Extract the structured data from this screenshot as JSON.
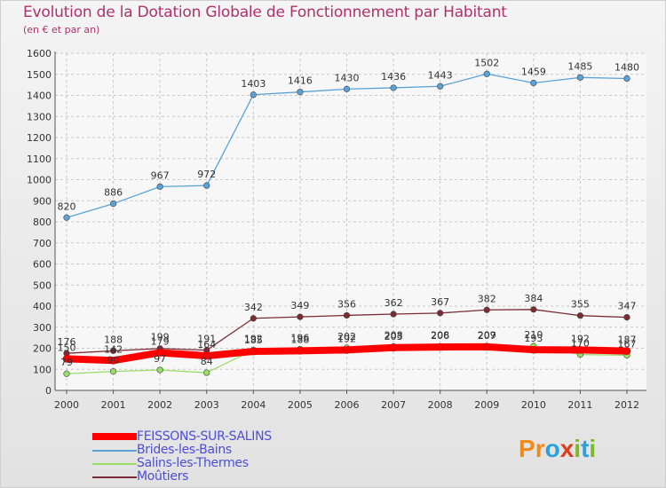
{
  "header": {
    "title": "Evolution de la Dotation Globale de Fonctionnement par Habitant",
    "subtitle": "(en € et par an)"
  },
  "logo": {
    "letters": [
      "P",
      "r",
      "o",
      "x",
      "i",
      "t",
      "i"
    ],
    "colors": [
      "#f08a1c",
      "#f08a1c",
      "#2aa1d8",
      "#e23a1c",
      "#7cb828",
      "#2aa1d8",
      "#7cb828"
    ]
  },
  "chart_data": {
    "type": "line",
    "title": "Evolution de la Dotation Globale de Fonctionnement par Habitant",
    "subtitle": "(en € et par an)",
    "xlabel": "",
    "ylabel": "",
    "ylim": [
      0,
      1600
    ],
    "ytick_step": 100,
    "yticks": [
      "0",
      "100",
      "200",
      "300",
      "400",
      "500",
      "600",
      "700",
      "800",
      "900",
      "1000",
      "1100",
      "1200",
      "1300",
      "1400",
      "1500",
      "1600"
    ],
    "x": [
      "2000",
      "2001",
      "2002",
      "2003",
      "2004",
      "2005",
      "2006",
      "2007",
      "2008",
      "2009",
      "2010",
      "2011",
      "2012"
    ],
    "grid": true,
    "legend_position": "bottom-left",
    "series": [
      {
        "name": "FEISSONS-SUR-SALINS",
        "color": "#ff0000",
        "values": [
          150,
          142,
          179,
          164,
          185,
          188,
          192,
          203,
          206,
          207,
          193,
          192,
          187
        ],
        "labels": [
          "150",
          "142",
          "179",
          "164",
          "185",
          "188",
          "192",
          "203",
          "206",
          "207",
          "193",
          "192",
          "187"
        ]
      },
      {
        "name": "Brides-les-Bains",
        "color": "#5ba3d6",
        "values": [
          820,
          886,
          967,
          972,
          1403,
          1416,
          1430,
          1436,
          1443,
          1502,
          1459,
          1485,
          1480
        ],
        "labels": [
          "820",
          "886",
          "967",
          "972",
          "1403",
          "1416",
          "1430",
          "1436",
          "1443",
          "1502",
          "1459",
          "1485",
          "1480"
        ]
      },
      {
        "name": "Salins-les-Thermes",
        "color": "#99dd66",
        "values": [
          79,
          90,
          97,
          84,
          192,
          196,
          202,
          208,
          208,
          209,
          210,
          170,
          167
        ],
        "labels": [
          "79",
          "90",
          "97",
          "84",
          "192",
          "196",
          "202",
          "208",
          "208",
          "209",
          "210",
          "170",
          "167"
        ]
      },
      {
        "name": "Moûtiers",
        "color": "#7a2b33",
        "values": [
          176,
          188,
          199,
          191,
          342,
          349,
          356,
          362,
          367,
          382,
          384,
          355,
          347
        ],
        "labels": [
          "176",
          "188",
          "199",
          "191",
          "342",
          "349",
          "356",
          "362",
          "367",
          "382",
          "384",
          "355",
          "347"
        ]
      }
    ]
  }
}
